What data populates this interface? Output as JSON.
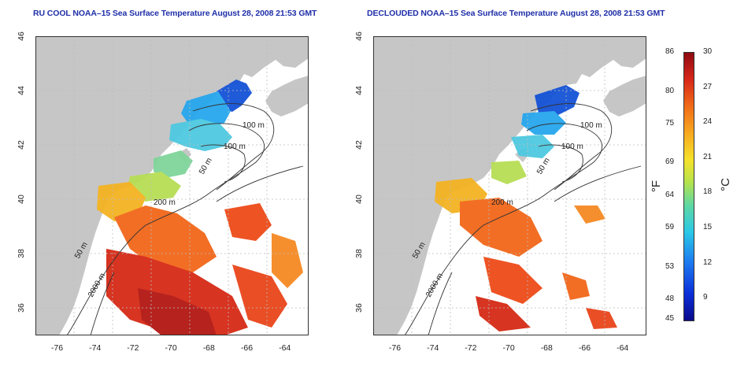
{
  "panels": [
    {
      "title": "RU COOL NOAA–15 Sea Surface Temperature August 28, 2008 21:53 GMT"
    },
    {
      "title": "DECLOUDED NOAA–15 Sea Surface Temperature August 28, 2008 21:53 GMT"
    }
  ],
  "axes": {
    "longitude_ticks": [
      "-76",
      "-74",
      "-72",
      "-70",
      "-68",
      "-66",
      "-64"
    ],
    "latitude_ticks": [
      "36",
      "38",
      "40",
      "42",
      "44",
      "46"
    ],
    "lon_range": [
      -77.2,
      -62.8
    ],
    "lat_range": [
      35,
      46
    ]
  },
  "contour_labels": [
    "100 m",
    "100 m",
    "50 m",
    "200 m",
    "50 m",
    "2000 m"
  ],
  "colorbar": {
    "fahrenheit_ticks": [
      "86",
      "80",
      "75",
      "69",
      "64",
      "59",
      "53",
      "48",
      "45"
    ],
    "celsius_ticks": [
      "30",
      "27",
      "24",
      "21",
      "18",
      "15",
      "12",
      "9"
    ],
    "fahrenheit_unit": "°F",
    "celsius_unit": "°C",
    "range_c": [
      7,
      30
    ]
  },
  "colors": {
    "land": "#c6c6c6",
    "ocean": "#ffffff",
    "grid": "#bdbdbd",
    "contour": "#333333",
    "title": "#1f2fa8"
  }
}
